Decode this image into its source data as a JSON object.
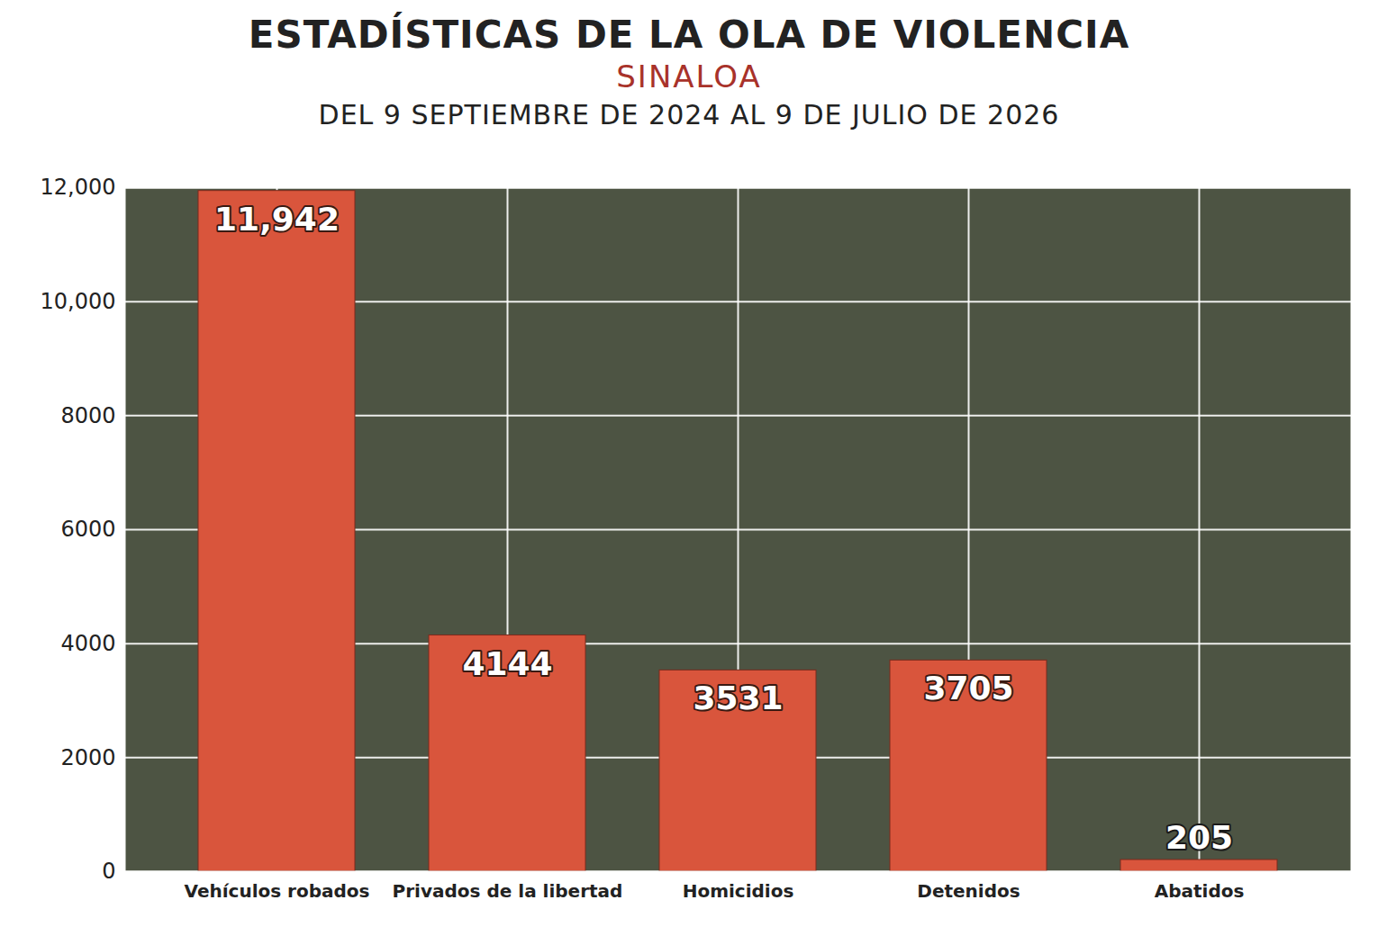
{
  "chart_data": {
    "type": "bar",
    "title": "ESTADÍSTICAS DE LA OLA DE VIOLENCIA",
    "subtitle": "SINALOA",
    "annotations": [
      "DEL 9 SEPTIEMBRE DE 2024 AL 9 DE JULIO DE 2026"
    ],
    "categories": [
      "Vehículos robados",
      "Privados de la libertad",
      "Homicidios",
      "Detenidos",
      "Abatidos"
    ],
    "values": [
      11942,
      4144,
      3531,
      3705,
      205
    ],
    "value_labels": [
      "11,942",
      "4144",
      "3531",
      "3705",
      "205"
    ],
    "color": "#d9553c",
    "ylim": [
      0,
      12000
    ],
    "yticks": [
      0,
      2000,
      4000,
      6000,
      8000,
      {
        "value": 10000,
        "label": "10,000"
      },
      {
        "value": 12000,
        "label": "12,000"
      }
    ],
    "grid": true,
    "data_labels": true
  }
}
